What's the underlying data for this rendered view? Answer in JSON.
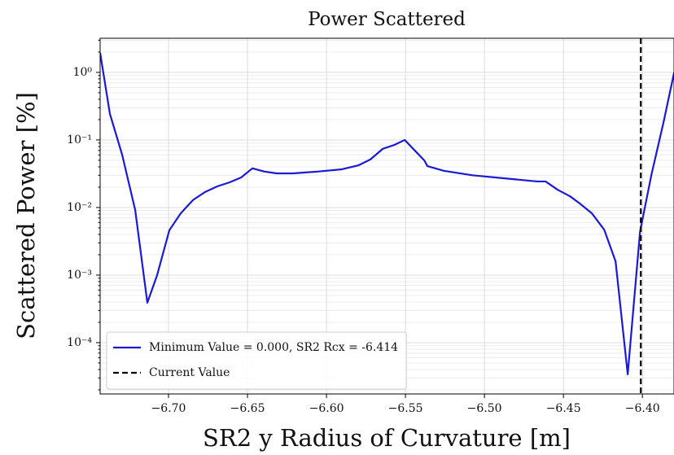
{
  "chart_data": {
    "type": "line",
    "title": "Power Scattered",
    "xlabel": "SR2 y Radius of Curvature [m]",
    "ylabel": "Scattered Power [%]",
    "log_y": true,
    "grid": true,
    "legend": "lower left",
    "xlim": [
      -6.7433,
      -6.38
    ],
    "ylim": [
      3.2,
      1.74e-05
    ],
    "xticks": [
      {
        "value": -6.7,
        "label": "−6.70"
      },
      {
        "value": -6.65,
        "label": "−6.65"
      },
      {
        "value": -6.6,
        "label": "−6.60"
      },
      {
        "value": -6.55,
        "label": "−6.55"
      },
      {
        "value": -6.5,
        "label": "−6.50"
      },
      {
        "value": -6.45,
        "label": "−6.45"
      },
      {
        "value": -6.4,
        "label": "−6.40"
      }
    ],
    "yticks": [
      {
        "value": 1,
        "label": "10⁰"
      },
      {
        "value": 0.1,
        "label": "10⁻¹"
      },
      {
        "value": 0.01,
        "label": "10⁻²"
      },
      {
        "value": 0.001,
        "label": "10⁻³"
      },
      {
        "value": 0.0001,
        "label": "10⁻⁴"
      }
    ],
    "series": [
      {
        "name": "Minimum Value = 0.000, SR2 Rcx = -6.414",
        "color": "#1a1ad6",
        "x": [
          -6.7433,
          -6.7371,
          -6.7294,
          -6.7211,
          -6.7134,
          -6.7072,
          -6.6995,
          -6.6923,
          -6.6845,
          -6.6768,
          -6.669,
          -6.6613,
          -6.654,
          -6.6469,
          -6.6392,
          -6.6314,
          -6.6211,
          -6.6057,
          -6.5902,
          -6.5799,
          -6.5722,
          -6.5644,
          -6.5567,
          -6.5505,
          -6.5381,
          -6.5361,
          -6.5258,
          -6.5077,
          -6.4871,
          -6.4665,
          -6.4613,
          -6.4536,
          -6.4459,
          -6.4397,
          -6.432,
          -6.4242,
          -6.417,
          -6.4093,
          -6.4015,
          -6.3943,
          -6.3866,
          -6.3799
        ],
        "values": [
          1.95,
          0.243,
          0.061,
          0.0092,
          0.00039,
          0.001,
          0.0046,
          0.0082,
          0.0129,
          0.017,
          0.0206,
          0.0236,
          0.0279,
          0.038,
          0.034,
          0.032,
          0.032,
          0.034,
          0.0368,
          0.042,
          0.0515,
          0.0738,
          0.085,
          0.1,
          0.0499,
          0.041,
          0.035,
          0.03,
          0.027,
          0.0243,
          0.0243,
          0.0183,
          0.0147,
          0.0115,
          0.0082,
          0.0047,
          0.0016,
          3.4e-05,
          0.0044,
          0.0305,
          0.184,
          1.0
        ]
      }
    ],
    "vline": {
      "x": -6.401,
      "name": "Current Value",
      "color": "#000000"
    }
  }
}
